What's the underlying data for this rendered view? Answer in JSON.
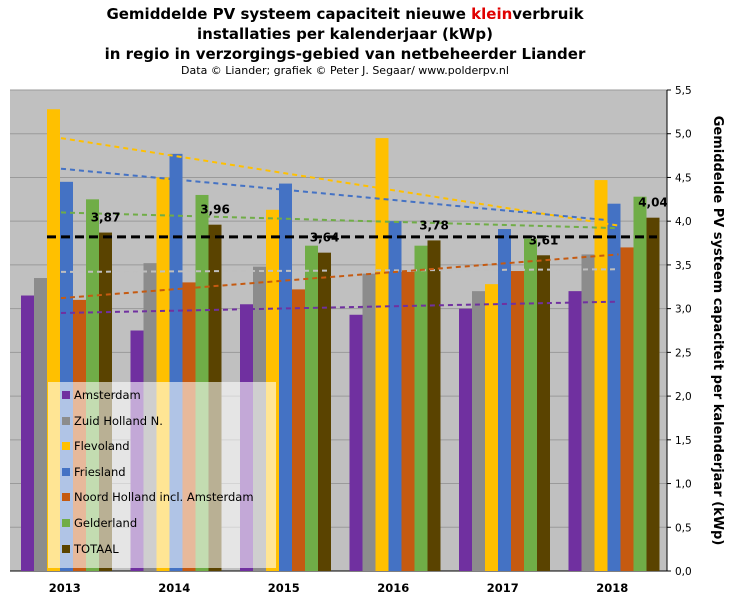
{
  "title": {
    "line1_pre": "Gemiddelde  PV  systeem  capaciteit  nieuwe  ",
    "line1_hl": "klein",
    "line1_post": "verbruik",
    "line2": "installaties  per kalenderjaar (kWp)",
    "line3": "in regio in  verzorgings-gebied  van netbeheerder Liander",
    "credit": "Data © Liander; grafiek © Peter J. Segaar/ www.polderpv.nl"
  },
  "chart_data": {
    "type": "bar",
    "categories": [
      "2013",
      "2014",
      "2015",
      "2016",
      "2017",
      "2018"
    ],
    "ylabel": "Gemiddelde  PV  systeem capaciteit  per kalenderjaar  (kWp)",
    "ylim": [
      0,
      5.5
    ],
    "yticks": [
      "0,0",
      "0,5",
      "1,0",
      "1,5",
      "2,0",
      "2,5",
      "3,0",
      "3,5",
      "4,0",
      "4,5",
      "5,0",
      "5,5"
    ],
    "y_axis_side": "right",
    "grid": true,
    "series": [
      {
        "name": "Amsterdam",
        "color": "#7030a0",
        "values": [
          3.15,
          2.75,
          3.05,
          2.93,
          3.0,
          3.2
        ]
      },
      {
        "name": "Zuid Holland N.",
        "color": "#8c8c8c",
        "values": [
          3.35,
          3.52,
          3.48,
          3.4,
          3.2,
          3.62
        ]
      },
      {
        "name": "Flevoland",
        "color": "#ffc000",
        "values": [
          5.28,
          4.5,
          4.13,
          4.95,
          3.28,
          4.47
        ]
      },
      {
        "name": "Friesland",
        "color": "#4472c4",
        "values": [
          4.45,
          4.77,
          4.43,
          4.0,
          3.91,
          4.2
        ]
      },
      {
        "name": "Noord Holland incl. Amsterdam",
        "color": "#c55a11",
        "values": [
          3.1,
          3.3,
          3.22,
          3.42,
          3.43,
          3.7
        ]
      },
      {
        "name": "Gelderland",
        "color": "#70ad47",
        "values": [
          4.25,
          4.3,
          3.72,
          3.72,
          3.8,
          4.28
        ]
      },
      {
        "name": "TOTAAL",
        "color": "#5a4300",
        "values": [
          3.87,
          3.96,
          3.64,
          3.78,
          3.61,
          4.04
        ]
      }
    ],
    "data_labels": {
      "series": "TOTAAL",
      "labels": [
        "3,87",
        "3,96",
        "3,64",
        "3,78",
        "3,61",
        "4,04"
      ]
    },
    "trendlines": [
      {
        "series": "Amsterdam",
        "color": "#7030a0",
        "start": 2.95,
        "end": 3.08
      },
      {
        "series": "Zuid Holland N.",
        "color": "#bfbfbf",
        "start": 3.42,
        "end": 3.45
      },
      {
        "series": "Flevoland",
        "color": "#ffc000",
        "start": 4.95,
        "end": 3.95
      },
      {
        "series": "Friesland",
        "color": "#4472c4",
        "start": 4.6,
        "end": 4.0
      },
      {
        "series": "Noord Holland incl. Amsterdam",
        "color": "#c55a11",
        "start": 3.12,
        "end": 3.62
      },
      {
        "series": "Gelderland",
        "color": "#70ad47",
        "start": 4.1,
        "end": 3.92
      }
    ],
    "reference_line": {
      "color": "#000000",
      "value": 3.82
    }
  }
}
